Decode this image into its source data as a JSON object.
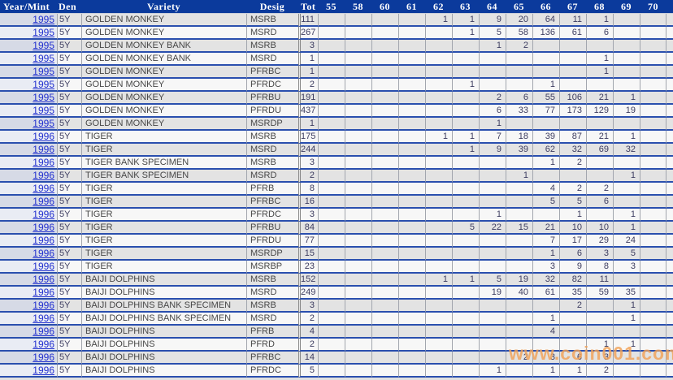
{
  "colors": {
    "header_bg": "#0b3a9c",
    "row_border_blue": "#2a4fae",
    "year_link_blue": "#2230cf",
    "odd_row_bg": "#e3e3e3",
    "even_row_bg": "#f7f7f7",
    "year_col_tint": "#d6dae6",
    "watermark_orange": "#f2a257"
  },
  "watermark": {
    "text": "www.coin001.com"
  },
  "table": {
    "columns": [
      "Year/Mint",
      "Den",
      "Variety",
      "Desig",
      "Tot",
      "55",
      "58",
      "60",
      "61",
      "62",
      "63",
      "64",
      "65",
      "66",
      "67",
      "68",
      "69",
      "70"
    ],
    "grade_columns": [
      "55",
      "58",
      "60",
      "61",
      "62",
      "63",
      "64",
      "65",
      "66",
      "67",
      "68",
      "69",
      "70"
    ],
    "rows": [
      {
        "year": "1995",
        "den": "5Y",
        "variety": "GOLDEN MONKEY",
        "desig": "MSRB",
        "tot": "111",
        "grades": [
          "",
          "",
          "",
          "",
          "1",
          "1",
          "9",
          "20",
          "64",
          "11",
          "1",
          "",
          ""
        ]
      },
      {
        "year": "1995",
        "den": "5Y",
        "variety": "GOLDEN MONKEY",
        "desig": "MSRD",
        "tot": "267",
        "grades": [
          "",
          "",
          "",
          "",
          "",
          "1",
          "5",
          "58",
          "136",
          "61",
          "6",
          "",
          ""
        ]
      },
      {
        "year": "1995",
        "den": "5Y",
        "variety": "GOLDEN MONKEY BANK",
        "desig": "MSRB",
        "tot": "3",
        "grades": [
          "",
          "",
          "",
          "",
          "",
          "",
          "1",
          "2",
          "",
          "",
          "",
          "",
          ""
        ]
      },
      {
        "year": "1995",
        "den": "5Y",
        "variety": "GOLDEN MONKEY BANK",
        "desig": "MSRD",
        "tot": "1",
        "grades": [
          "",
          "",
          "",
          "",
          "",
          "",
          "",
          "",
          "",
          "",
          "1",
          "",
          ""
        ]
      },
      {
        "year": "1995",
        "den": "5Y",
        "variety": "GOLDEN MONKEY",
        "desig": "PFRBC",
        "tot": "1",
        "grades": [
          "",
          "",
          "",
          "",
          "",
          "",
          "",
          "",
          "",
          "",
          "1",
          "",
          ""
        ]
      },
      {
        "year": "1995",
        "den": "5Y",
        "variety": "GOLDEN MONKEY",
        "desig": "PFRDC",
        "tot": "2",
        "grades": [
          "",
          "",
          "",
          "",
          "",
          "1",
          "",
          "",
          "1",
          "",
          "",
          "",
          ""
        ]
      },
      {
        "year": "1995",
        "den": "5Y",
        "variety": "GOLDEN MONKEY",
        "desig": "PFRBU",
        "tot": "191",
        "grades": [
          "",
          "",
          "",
          "",
          "",
          "",
          "2",
          "6",
          "55",
          "106",
          "21",
          "1",
          ""
        ]
      },
      {
        "year": "1995",
        "den": "5Y",
        "variety": "GOLDEN MONKEY",
        "desig": "PFRDU",
        "tot": "437",
        "grades": [
          "",
          "",
          "",
          "",
          "",
          "",
          "6",
          "33",
          "77",
          "173",
          "129",
          "19",
          ""
        ]
      },
      {
        "year": "1995",
        "den": "5Y",
        "variety": "GOLDEN MONKEY",
        "desig": "MSRDP",
        "tot": "1",
        "grades": [
          "",
          "",
          "",
          "",
          "",
          "",
          "1",
          "",
          "",
          "",
          "",
          "",
          ""
        ]
      },
      {
        "year": "1996",
        "den": "5Y",
        "variety": "TIGER",
        "desig": "MSRB",
        "tot": "175",
        "grades": [
          "",
          "",
          "",
          "",
          "1",
          "1",
          "7",
          "18",
          "39",
          "87",
          "21",
          "1",
          ""
        ]
      },
      {
        "year": "1996",
        "den": "5Y",
        "variety": "TIGER",
        "desig": "MSRD",
        "tot": "244",
        "grades": [
          "",
          "",
          "",
          "",
          "",
          "1",
          "9",
          "39",
          "62",
          "32",
          "69",
          "32",
          ""
        ]
      },
      {
        "year": "1996",
        "den": "5Y",
        "variety": "TIGER BANK SPECIMEN",
        "desig": "MSRB",
        "tot": "3",
        "grades": [
          "",
          "",
          "",
          "",
          "",
          "",
          "",
          "",
          "1",
          "2",
          "",
          "",
          ""
        ]
      },
      {
        "year": "1996",
        "den": "5Y",
        "variety": "TIGER BANK SPECIMEN",
        "desig": "MSRD",
        "tot": "2",
        "grades": [
          "",
          "",
          "",
          "",
          "",
          "",
          "",
          "1",
          "",
          "",
          "",
          "1",
          ""
        ]
      },
      {
        "year": "1996",
        "den": "5Y",
        "variety": "TIGER",
        "desig": "PFRB",
        "tot": "8",
        "grades": [
          "",
          "",
          "",
          "",
          "",
          "",
          "",
          "",
          "4",
          "2",
          "2",
          "",
          ""
        ]
      },
      {
        "year": "1996",
        "den": "5Y",
        "variety": "TIGER",
        "desig": "PFRBC",
        "tot": "16",
        "grades": [
          "",
          "",
          "",
          "",
          "",
          "",
          "",
          "",
          "5",
          "5",
          "6",
          "",
          ""
        ]
      },
      {
        "year": "1996",
        "den": "5Y",
        "variety": "TIGER",
        "desig": "PFRDC",
        "tot": "3",
        "grades": [
          "",
          "",
          "",
          "",
          "",
          "",
          "1",
          "",
          "",
          "1",
          "",
          "1",
          ""
        ]
      },
      {
        "year": "1996",
        "den": "5Y",
        "variety": "TIGER",
        "desig": "PFRBU",
        "tot": "84",
        "grades": [
          "",
          "",
          "",
          "",
          "",
          "5",
          "22",
          "15",
          "21",
          "10",
          "10",
          "1",
          ""
        ]
      },
      {
        "year": "1996",
        "den": "5Y",
        "variety": "TIGER",
        "desig": "PFRDU",
        "tot": "77",
        "grades": [
          "",
          "",
          "",
          "",
          "",
          "",
          "",
          "",
          "7",
          "17",
          "29",
          "24",
          ""
        ]
      },
      {
        "year": "1996",
        "den": "5Y",
        "variety": "TIGER",
        "desig": "MSRDP",
        "tot": "15",
        "grades": [
          "",
          "",
          "",
          "",
          "",
          "",
          "",
          "",
          "1",
          "6",
          "3",
          "5",
          ""
        ]
      },
      {
        "year": "1996",
        "den": "5Y",
        "variety": "TIGER",
        "desig": "MSRBP",
        "tot": "23",
        "grades": [
          "",
          "",
          "",
          "",
          "",
          "",
          "",
          "",
          "3",
          "9",
          "8",
          "3",
          ""
        ]
      },
      {
        "year": "1996",
        "den": "5Y",
        "variety": "BAIJI DOLPHINS",
        "desig": "MSRB",
        "tot": "152",
        "grades": [
          "",
          "",
          "",
          "",
          "1",
          "1",
          "5",
          "19",
          "32",
          "82",
          "11",
          "",
          ""
        ]
      },
      {
        "year": "1996",
        "den": "5Y",
        "variety": "BAIJI DOLPHINS",
        "desig": "MSRD",
        "tot": "249",
        "grades": [
          "",
          "",
          "",
          "",
          "",
          "",
          "19",
          "40",
          "61",
          "35",
          "59",
          "35",
          ""
        ]
      },
      {
        "year": "1996",
        "den": "5Y",
        "variety": "BAIJI DOLPHINS BANK SPECIMEN",
        "desig": "MSRB",
        "tot": "3",
        "grades": [
          "",
          "",
          "",
          "",
          "",
          "",
          "",
          "",
          "",
          "2",
          "",
          "1",
          ""
        ]
      },
      {
        "year": "1996",
        "den": "5Y",
        "variety": "BAIJI DOLPHINS BANK SPECIMEN",
        "desig": "MSRD",
        "tot": "2",
        "grades": [
          "",
          "",
          "",
          "",
          "",
          "",
          "",
          "",
          "1",
          "",
          "",
          "1",
          ""
        ]
      },
      {
        "year": "1996",
        "den": "5Y",
        "variety": "BAIJI DOLPHINS",
        "desig": "PFRB",
        "tot": "4",
        "grades": [
          "",
          "",
          "",
          "",
          "",
          "",
          "",
          "",
          "4",
          "",
          "",
          "",
          ""
        ]
      },
      {
        "year": "1996",
        "den": "5Y",
        "variety": "BAIJI DOLPHINS",
        "desig": "PFRD",
        "tot": "2",
        "grades": [
          "",
          "",
          "",
          "",
          "",
          "",
          "",
          "",
          "",
          "",
          "1",
          "1",
          ""
        ]
      },
      {
        "year": "1996",
        "den": "5Y",
        "variety": "BAIJI DOLPHINS",
        "desig": "PFRBC",
        "tot": "14",
        "grades": [
          "",
          "",
          "",
          "",
          "",
          "",
          "",
          "2",
          "3",
          "6",
          "3",
          "",
          ""
        ]
      },
      {
        "year": "1996",
        "den": "5Y",
        "variety": "BAIJI DOLPHINS",
        "desig": "PFRDC",
        "tot": "5",
        "grades": [
          "",
          "",
          "",
          "",
          "",
          "",
          "1",
          "",
          "1",
          "1",
          "2",
          "",
          ""
        ]
      }
    ]
  }
}
